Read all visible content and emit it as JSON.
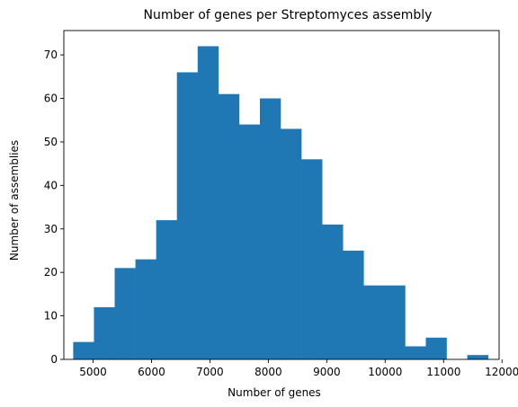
{
  "chart_data": {
    "type": "bar",
    "title": "Number of genes per Streptomyces assembly",
    "xlabel": "Number of genes",
    "ylabel": "Number of assemblies",
    "xlim": [
      4500,
      11950
    ],
    "ylim": [
      0,
      75.6
    ],
    "xticks": [
      5000,
      6000,
      7000,
      8000,
      9000,
      10000,
      11000,
      12000
    ],
    "yticks": [
      0,
      10,
      20,
      30,
      40,
      50,
      60,
      70
    ],
    "bin_edges": [
      4660,
      5015,
      5370,
      5725,
      6080,
      6435,
      6790,
      7145,
      7500,
      7855,
      8210,
      8565,
      8920,
      9275,
      9630,
      9985,
      10340,
      10695,
      11050,
      11405,
      11760
    ],
    "values": [
      4,
      12,
      21,
      23,
      32,
      66,
      72,
      61,
      54,
      60,
      53,
      46,
      31,
      25,
      17,
      17,
      3,
      5,
      0,
      1
    ],
    "bar_color": "#1f77b4",
    "grid": false
  }
}
